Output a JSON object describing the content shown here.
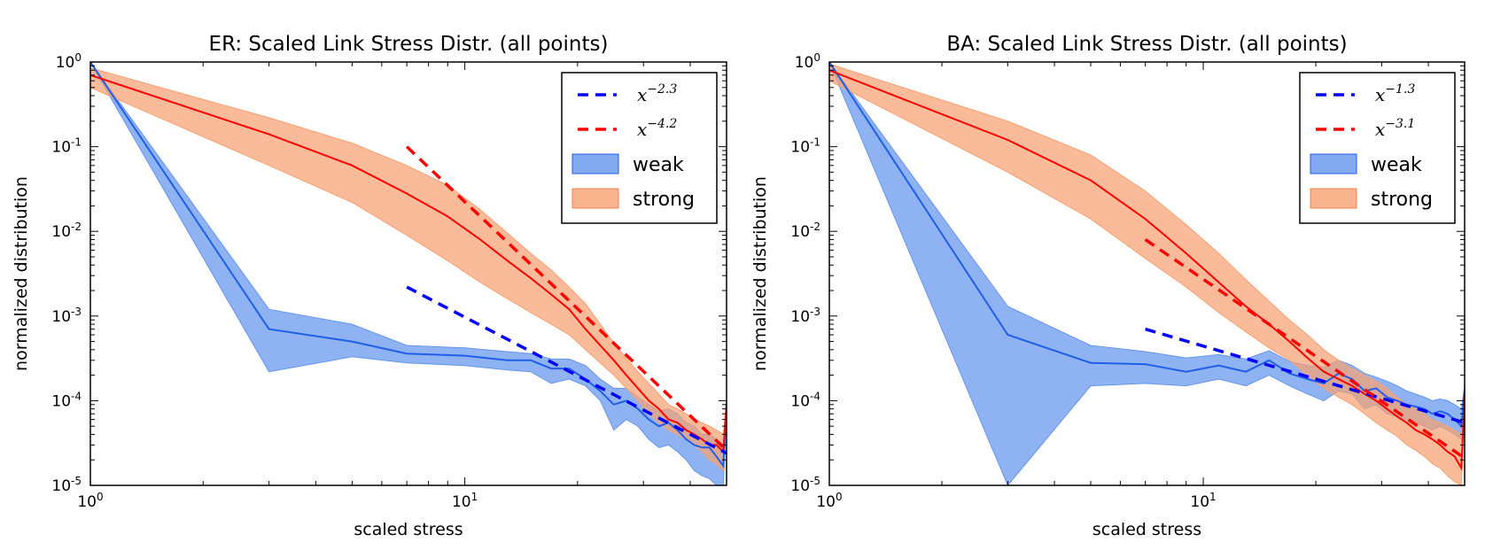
{
  "chart_data": [
    {
      "type": "line",
      "title": "ER: Scaled Link Stress Distr. (all points)",
      "xlabel": "scaled stress",
      "ylabel": "normalized distribution",
      "xscale": "log",
      "yscale": "log",
      "xlim": [
        1,
        50
      ],
      "ylim": [
        1e-05,
        1
      ],
      "grid": false,
      "legend_placement": "top-right",
      "xticks": [
        {
          "base": "10",
          "exp": "0"
        },
        {
          "base": "10",
          "exp": "1"
        }
      ],
      "yticks": [
        {
          "base": "10",
          "exp": "0"
        },
        {
          "base": "10",
          "exp": "-1"
        },
        {
          "base": "10",
          "exp": "-2"
        },
        {
          "base": "10",
          "exp": "-3"
        },
        {
          "base": "10",
          "exp": "-4"
        },
        {
          "base": "10",
          "exp": "-5"
        }
      ],
      "series": [
        {
          "name": "weak",
          "kind": "band",
          "color": "#1f5fe8",
          "fill": "#6495ed",
          "x": [
            1,
            3,
            5,
            7,
            10,
            13,
            15,
            17,
            19,
            21,
            23,
            25,
            27,
            29,
            31,
            33,
            35,
            37,
            39,
            41,
            43,
            45,
            47,
            49,
            50
          ],
          "y": [
            1.0,
            0.0007,
            0.0005,
            0.00036,
            0.00034,
            0.0003,
            0.0003,
            0.00024,
            0.00024,
            0.00018,
            0.00013,
            9e-05,
            0.0001,
            8e-05,
            6e-05,
            5e-05,
            5.5e-05,
            4.5e-05,
            3.5e-05,
            3e-05,
            2.8e-05,
            2.8e-05,
            2.2e-05,
            1.7e-05,
            9.5e-05
          ],
          "lower": [
            0.98,
            0.00022,
            0.00033,
            0.00028,
            0.00026,
            0.00023,
            0.00022,
            0.00016,
            0.00018,
            0.00015,
            0.0001,
            4.5e-05,
            6e-05,
            5e-05,
            3.5e-05,
            2.8e-05,
            3e-05,
            2.5e-05,
            2e-05,
            1.5e-05,
            1.3e-05,
            1.2e-05,
            1e-05,
            1e-05,
            7e-05
          ],
          "upper": [
            1.0,
            0.0012,
            0.0008,
            0.00045,
            0.00042,
            0.00038,
            0.00036,
            0.00031,
            0.00031,
            0.00026,
            0.00018,
            0.00014,
            0.00014,
            0.00011,
            9e-05,
            7.5e-05,
            8e-05,
            7e-05,
            5.5e-05,
            5e-05,
            4e-05,
            4e-05,
            3.5e-05,
            3e-05,
            0.0001
          ]
        },
        {
          "name": "strong",
          "kind": "band",
          "color": "#ff0000",
          "fill": "#f7a172",
          "x": [
            1,
            3,
            5,
            7,
            9,
            11,
            13,
            15,
            17,
            19,
            21,
            23,
            25,
            27,
            29,
            31,
            33,
            35,
            37,
            39,
            41,
            43,
            45,
            47,
            49,
            50
          ],
          "y": [
            0.7,
            0.14,
            0.06,
            0.028,
            0.015,
            0.008,
            0.0045,
            0.0028,
            0.0018,
            0.0012,
            0.0007,
            0.00045,
            0.0003,
            0.0002,
            0.00014,
            0.0001,
            8e-05,
            6e-05,
            5.5e-05,
            4.5e-05,
            4e-05,
            3.5e-05,
            3e-05,
            3e-05,
            2.5e-05,
            9e-05
          ],
          "lower": [
            0.5,
            0.06,
            0.022,
            0.009,
            0.0045,
            0.0025,
            0.0016,
            0.0011,
            0.0008,
            0.0006,
            0.0004,
            0.00028,
            0.0002,
            0.00014,
            0.0001,
            7e-05,
            5.5e-05,
            4.5e-05,
            4e-05,
            3.5e-05,
            3e-05,
            2.5e-05,
            2e-05,
            1.8e-05,
            1.5e-05,
            7e-05
          ],
          "upper": [
            0.85,
            0.22,
            0.11,
            0.06,
            0.035,
            0.018,
            0.0095,
            0.0055,
            0.0035,
            0.0022,
            0.0014,
            0.0008,
            0.00048,
            0.00032,
            0.00022,
            0.00016,
            0.00012,
            9e-05,
            8e-05,
            7e-05,
            6e-05,
            5.5e-05,
            5e-05,
            4.5e-05,
            4e-05,
            0.0001
          ]
        },
        {
          "name": "x^{-2.3}",
          "kind": "dashed",
          "color": "#0000ff",
          "x": [
            7,
            50
          ],
          "y": [
            0.0022,
            2.4e-05
          ]
        },
        {
          "name": "x^{-4.2}",
          "kind": "dashed",
          "color": "#ff0000",
          "x": [
            7,
            50
          ],
          "y": [
            0.1,
            2.6e-05
          ]
        }
      ],
      "legend": [
        {
          "label": "x",
          "sup": "−2.3",
          "kind": "dashed",
          "color": "#0000ff"
        },
        {
          "label": "x",
          "sup": "−4.2",
          "kind": "dashed",
          "color": "#ff0000"
        },
        {
          "label": "weak",
          "kind": "band",
          "color": "#1f5fe8",
          "fill": "#6495ed"
        },
        {
          "label": "strong",
          "kind": "band",
          "color": "#f08050",
          "fill": "#f7a172"
        }
      ]
    },
    {
      "type": "line",
      "title": "BA: Scaled Link Stress Distr. (all points)",
      "xlabel": "scaled stress",
      "ylabel": "normalized distribution",
      "xscale": "log",
      "yscale": "log",
      "xlim": [
        1,
        50
      ],
      "ylim": [
        1e-05,
        1
      ],
      "grid": false,
      "legend_placement": "top-right",
      "xticks": [
        {
          "base": "10",
          "exp": "0"
        },
        {
          "base": "10",
          "exp": "1"
        }
      ],
      "yticks": [
        {
          "base": "10",
          "exp": "0"
        },
        {
          "base": "10",
          "exp": "-1"
        },
        {
          "base": "10",
          "exp": "-2"
        },
        {
          "base": "10",
          "exp": "-3"
        },
        {
          "base": "10",
          "exp": "-4"
        },
        {
          "base": "10",
          "exp": "-5"
        }
      ],
      "series": [
        {
          "name": "weak",
          "kind": "band",
          "color": "#1f5fe8",
          "fill": "#6495ed",
          "x": [
            1,
            3,
            5,
            7,
            9,
            11,
            13,
            15,
            17,
            19,
            21,
            23,
            25,
            27,
            29,
            31,
            33,
            35,
            37,
            39,
            41,
            43,
            45,
            47,
            49,
            50
          ],
          "y": [
            1.0,
            0.0006,
            0.00028,
            0.00027,
            0.00022,
            0.00026,
            0.00022,
            0.0003,
            0.00021,
            0.00018,
            0.00016,
            0.00021,
            0.00018,
            0.00013,
            0.00014,
            0.00011,
            0.0001,
            9e-05,
            8.5e-05,
            8e-05,
            7e-05,
            7.5e-05,
            7e-05,
            6e-05,
            5e-05,
            0.00013
          ],
          "lower": [
            0.98,
            1e-05,
            0.00015,
            0.00016,
            0.00015,
            0.00018,
            0.00015,
            0.0002,
            0.00015,
            0.00012,
            0.0001,
            0.00013,
            0.00012,
            8e-05,
            9e-05,
            7e-05,
            6.5e-05,
            6e-05,
            5.5e-05,
            5e-05,
            4.5e-05,
            5e-05,
            4.5e-05,
            4e-05,
            3.5e-05,
            0.0001
          ],
          "upper": [
            1.0,
            0.0013,
            0.00045,
            0.00038,
            0.00032,
            0.00035,
            0.00031,
            0.00039,
            0.00029,
            0.00026,
            0.00025,
            0.0003,
            0.00026,
            0.00021,
            0.00019,
            0.00017,
            0.00015,
            0.00013,
            0.00012,
            0.00011,
            0.0001,
            0.000105,
            0.0001,
            9e-05,
            8e-05,
            0.00015
          ]
        },
        {
          "name": "strong",
          "kind": "band",
          "color": "#ff0000",
          "fill": "#f7a172",
          "x": [
            1,
            3,
            5,
            7,
            9,
            11,
            13,
            15,
            17,
            19,
            21,
            23,
            25,
            27,
            29,
            31,
            33,
            35,
            37,
            39,
            41,
            43,
            45,
            47,
            49,
            50
          ],
          "y": [
            0.8,
            0.12,
            0.04,
            0.014,
            0.0055,
            0.0025,
            0.0013,
            0.0008,
            0.0005,
            0.00032,
            0.00022,
            0.00018,
            0.00015,
            0.00012,
            0.0001,
            8e-05,
            6.5e-05,
            5.5e-05,
            4.5e-05,
            4e-05,
            3.5e-05,
            3e-05,
            2.5e-05,
            2.2e-05,
            1.6e-05,
            0.00011
          ],
          "lower": [
            0.6,
            0.05,
            0.014,
            0.0048,
            0.0022,
            0.0011,
            0.00065,
            0.00042,
            0.0003,
            0.0002,
            0.00014,
            0.00011,
            9e-05,
            7e-05,
            5.5e-05,
            4.5e-05,
            3.8e-05,
            3e-05,
            2.6e-05,
            2.2e-05,
            1.8e-05,
            1.6e-05,
            1.3e-05,
            1.1e-05,
            1e-05,
            8e-05
          ],
          "upper": [
            0.95,
            0.2,
            0.08,
            0.03,
            0.012,
            0.0055,
            0.0027,
            0.0015,
            0.0009,
            0.0006,
            0.0004,
            0.0003,
            0.00024,
            0.0002,
            0.00017,
            0.00014,
            0.00011,
            9e-05,
            8e-05,
            7e-05,
            6e-05,
            5.5e-05,
            5e-05,
            4.5e-05,
            4e-05,
            0.00014
          ]
        },
        {
          "name": "x^{-1.3}",
          "kind": "dashed",
          "color": "#0000ff",
          "x": [
            7,
            50
          ],
          "y": [
            0.0007,
            5.5e-05
          ]
        },
        {
          "name": "x^{-3.1}",
          "kind": "dashed",
          "color": "#ff0000",
          "x": [
            7,
            50
          ],
          "y": [
            0.008,
            2.1e-05
          ]
        }
      ],
      "legend": [
        {
          "label": "x",
          "sup": "−1.3",
          "kind": "dashed",
          "color": "#0000ff"
        },
        {
          "label": "x",
          "sup": "−3.1",
          "kind": "dashed",
          "color": "#ff0000"
        },
        {
          "label": "weak",
          "kind": "band",
          "color": "#1f5fe8",
          "fill": "#6495ed"
        },
        {
          "label": "strong",
          "kind": "band",
          "color": "#f08050",
          "fill": "#f7a172"
        }
      ]
    }
  ]
}
